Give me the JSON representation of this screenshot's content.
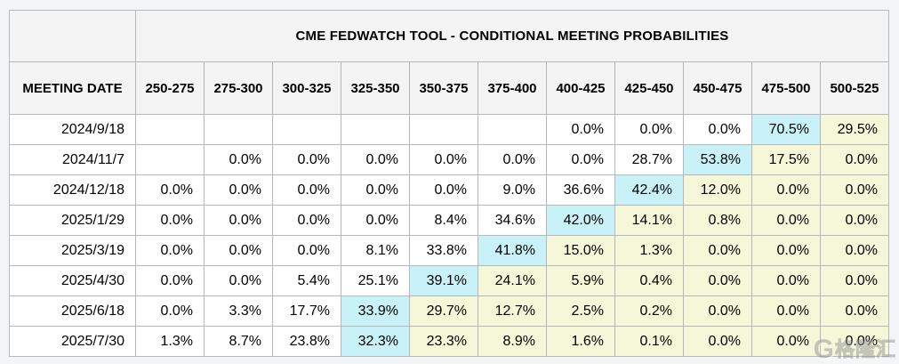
{
  "title": "CME FEDWATCH TOOL - CONDITIONAL MEETING PROBABILITIES",
  "date_column_header": "MEETING DATE",
  "columns": [
    "250-275",
    "275-300",
    "300-325",
    "325-350",
    "350-375",
    "375-400",
    "400-425",
    "425-450",
    "450-475",
    "475-500",
    "500-525"
  ],
  "rows": [
    {
      "date": "2024/9/18",
      "cells": [
        {
          "t": "",
          "bg": "plain"
        },
        {
          "t": "",
          "bg": "plain"
        },
        {
          "t": "",
          "bg": "plain"
        },
        {
          "t": "",
          "bg": "plain"
        },
        {
          "t": "",
          "bg": "plain"
        },
        {
          "t": "",
          "bg": "plain"
        },
        {
          "t": "0.0%",
          "bg": "plain"
        },
        {
          "t": "0.0%",
          "bg": "plain"
        },
        {
          "t": "0.0%",
          "bg": "plain"
        },
        {
          "t": "70.5%",
          "bg": "cyan"
        },
        {
          "t": "29.5%",
          "bg": "yellow"
        }
      ]
    },
    {
      "date": "2024/11/7",
      "cells": [
        {
          "t": "",
          "bg": "plain"
        },
        {
          "t": "0.0%",
          "bg": "plain"
        },
        {
          "t": "0.0%",
          "bg": "plain"
        },
        {
          "t": "0.0%",
          "bg": "plain"
        },
        {
          "t": "0.0%",
          "bg": "plain"
        },
        {
          "t": "0.0%",
          "bg": "plain"
        },
        {
          "t": "0.0%",
          "bg": "plain"
        },
        {
          "t": "28.7%",
          "bg": "plain"
        },
        {
          "t": "53.8%",
          "bg": "cyan"
        },
        {
          "t": "17.5%",
          "bg": "yellow"
        },
        {
          "t": "0.0%",
          "bg": "yellow"
        }
      ]
    },
    {
      "date": "2024/12/18",
      "cells": [
        {
          "t": "0.0%",
          "bg": "plain"
        },
        {
          "t": "0.0%",
          "bg": "plain"
        },
        {
          "t": "0.0%",
          "bg": "plain"
        },
        {
          "t": "0.0%",
          "bg": "plain"
        },
        {
          "t": "0.0%",
          "bg": "plain"
        },
        {
          "t": "9.0%",
          "bg": "plain"
        },
        {
          "t": "36.6%",
          "bg": "plain"
        },
        {
          "t": "42.4%",
          "bg": "cyan"
        },
        {
          "t": "12.0%",
          "bg": "yellow"
        },
        {
          "t": "0.0%",
          "bg": "yellow"
        },
        {
          "t": "0.0%",
          "bg": "yellow"
        }
      ]
    },
    {
      "date": "2025/1/29",
      "cells": [
        {
          "t": "0.0%",
          "bg": "plain"
        },
        {
          "t": "0.0%",
          "bg": "plain"
        },
        {
          "t": "0.0%",
          "bg": "plain"
        },
        {
          "t": "0.0%",
          "bg": "plain"
        },
        {
          "t": "8.4%",
          "bg": "plain"
        },
        {
          "t": "34.6%",
          "bg": "plain"
        },
        {
          "t": "42.0%",
          "bg": "cyan"
        },
        {
          "t": "14.1%",
          "bg": "yellow"
        },
        {
          "t": "0.8%",
          "bg": "yellow"
        },
        {
          "t": "0.0%",
          "bg": "yellow"
        },
        {
          "t": "0.0%",
          "bg": "yellow"
        }
      ]
    },
    {
      "date": "2025/3/19",
      "cells": [
        {
          "t": "0.0%",
          "bg": "plain"
        },
        {
          "t": "0.0%",
          "bg": "plain"
        },
        {
          "t": "0.0%",
          "bg": "plain"
        },
        {
          "t": "8.1%",
          "bg": "plain"
        },
        {
          "t": "33.8%",
          "bg": "plain"
        },
        {
          "t": "41.8%",
          "bg": "cyan"
        },
        {
          "t": "15.0%",
          "bg": "yellow"
        },
        {
          "t": "1.3%",
          "bg": "yellow"
        },
        {
          "t": "0.0%",
          "bg": "yellow"
        },
        {
          "t": "0.0%",
          "bg": "yellow"
        },
        {
          "t": "0.0%",
          "bg": "yellow"
        }
      ]
    },
    {
      "date": "2025/4/30",
      "cells": [
        {
          "t": "0.0%",
          "bg": "plain"
        },
        {
          "t": "0.0%",
          "bg": "plain"
        },
        {
          "t": "5.4%",
          "bg": "plain"
        },
        {
          "t": "25.1%",
          "bg": "plain"
        },
        {
          "t": "39.1%",
          "bg": "cyan"
        },
        {
          "t": "24.1%",
          "bg": "yellow"
        },
        {
          "t": "5.9%",
          "bg": "yellow"
        },
        {
          "t": "0.4%",
          "bg": "yellow"
        },
        {
          "t": "0.0%",
          "bg": "yellow"
        },
        {
          "t": "0.0%",
          "bg": "yellow"
        },
        {
          "t": "0.0%",
          "bg": "yellow"
        }
      ]
    },
    {
      "date": "2025/6/18",
      "cells": [
        {
          "t": "0.0%",
          "bg": "plain"
        },
        {
          "t": "3.3%",
          "bg": "plain"
        },
        {
          "t": "17.7%",
          "bg": "plain"
        },
        {
          "t": "33.9%",
          "bg": "cyan"
        },
        {
          "t": "29.7%",
          "bg": "yellow"
        },
        {
          "t": "12.7%",
          "bg": "yellow"
        },
        {
          "t": "2.5%",
          "bg": "yellow"
        },
        {
          "t": "0.2%",
          "bg": "yellow"
        },
        {
          "t": "0.0%",
          "bg": "yellow"
        },
        {
          "t": "0.0%",
          "bg": "yellow"
        },
        {
          "t": "0.0%",
          "bg": "yellow"
        }
      ]
    },
    {
      "date": "2025/7/30",
      "cells": [
        {
          "t": "1.3%",
          "bg": "plain"
        },
        {
          "t": "8.7%",
          "bg": "plain"
        },
        {
          "t": "23.8%",
          "bg": "plain"
        },
        {
          "t": "32.3%",
          "bg": "cyan"
        },
        {
          "t": "23.3%",
          "bg": "yellow"
        },
        {
          "t": "8.9%",
          "bg": "yellow"
        },
        {
          "t": "1.6%",
          "bg": "yellow"
        },
        {
          "t": "0.1%",
          "bg": "yellow"
        },
        {
          "t": "0.0%",
          "bg": "yellow"
        },
        {
          "t": "0.0%",
          "bg": "yellow"
        },
        {
          "t": "0.0%",
          "bg": "yellow"
        }
      ]
    }
  ],
  "watermark": {
    "logo": "G",
    "text": "格隆汇"
  },
  "colors": {
    "highlight_cyan": "#c9f1f8",
    "highlight_yellow": "#f6f6d8",
    "header_bg": "#f4f4f5",
    "border": "#b5b8bb",
    "page_bg": "#f4f5f6"
  }
}
